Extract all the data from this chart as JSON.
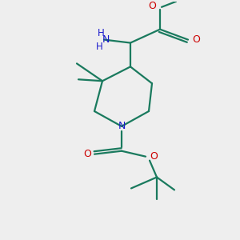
{
  "bg_color": "#eeeeee",
  "bond_color": "#1a7a5e",
  "N_color": "#1a1acc",
  "O_color": "#cc0000",
  "lw": 1.6,
  "figsize": [
    3.0,
    3.0
  ],
  "dpi": 100,
  "xlim": [
    0,
    300
  ],
  "ylim": [
    0,
    300
  ]
}
